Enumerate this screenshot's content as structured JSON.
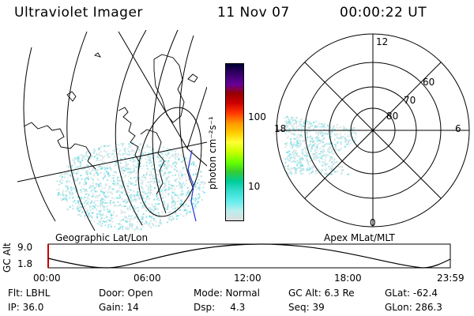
{
  "header": {
    "instrument": "Ultraviolet Imager",
    "date": "11 Nov 07",
    "time": "00:00:22 UT"
  },
  "geo_panel": {
    "caption": "Geographic Lat/Lon"
  },
  "colorbar": {
    "label": "photon cm⁻²s⁻¹",
    "ticks": [
      "100",
      "10"
    ],
    "colors": [
      "#000033",
      "#330066",
      "#660099",
      "#990000",
      "#cc0000",
      "#ff3300",
      "#ff9900",
      "#ffcc00",
      "#ffff33",
      "#ccff00",
      "#66ff00",
      "#33cc33",
      "#00cc99",
      "#33ddcc",
      "#66eeee",
      "#bbeeee",
      "#dddddd"
    ]
  },
  "polar_panel": {
    "caption": "Apex MLat/MLT",
    "mlt_labels": {
      "top": "12",
      "left": "18",
      "right": "6",
      "bottom": "0"
    },
    "lat_labels": [
      "60",
      "70",
      "80"
    ]
  },
  "altitude_plot": {
    "ylabel": "GC Alt",
    "yticks": [
      "9.0",
      "1.8"
    ],
    "xticks": [
      "00:00",
      "06:00",
      "12:00",
      "18:00",
      "23:59"
    ]
  },
  "footer": {
    "row1": {
      "filter": "Flt: LBHL",
      "door": "Door: Open",
      "mode": "Mode: Normal",
      "gc_alt": "GC Alt: 6.3 Re",
      "glat": "GLat: -62.4"
    },
    "row2": {
      "ip": "IP: 36.0",
      "gain": "Gain: 14",
      "dsp": "Dsp:     4.3",
      "seq": "Seq: 39",
      "glon": "GLon: 286.3"
    }
  }
}
